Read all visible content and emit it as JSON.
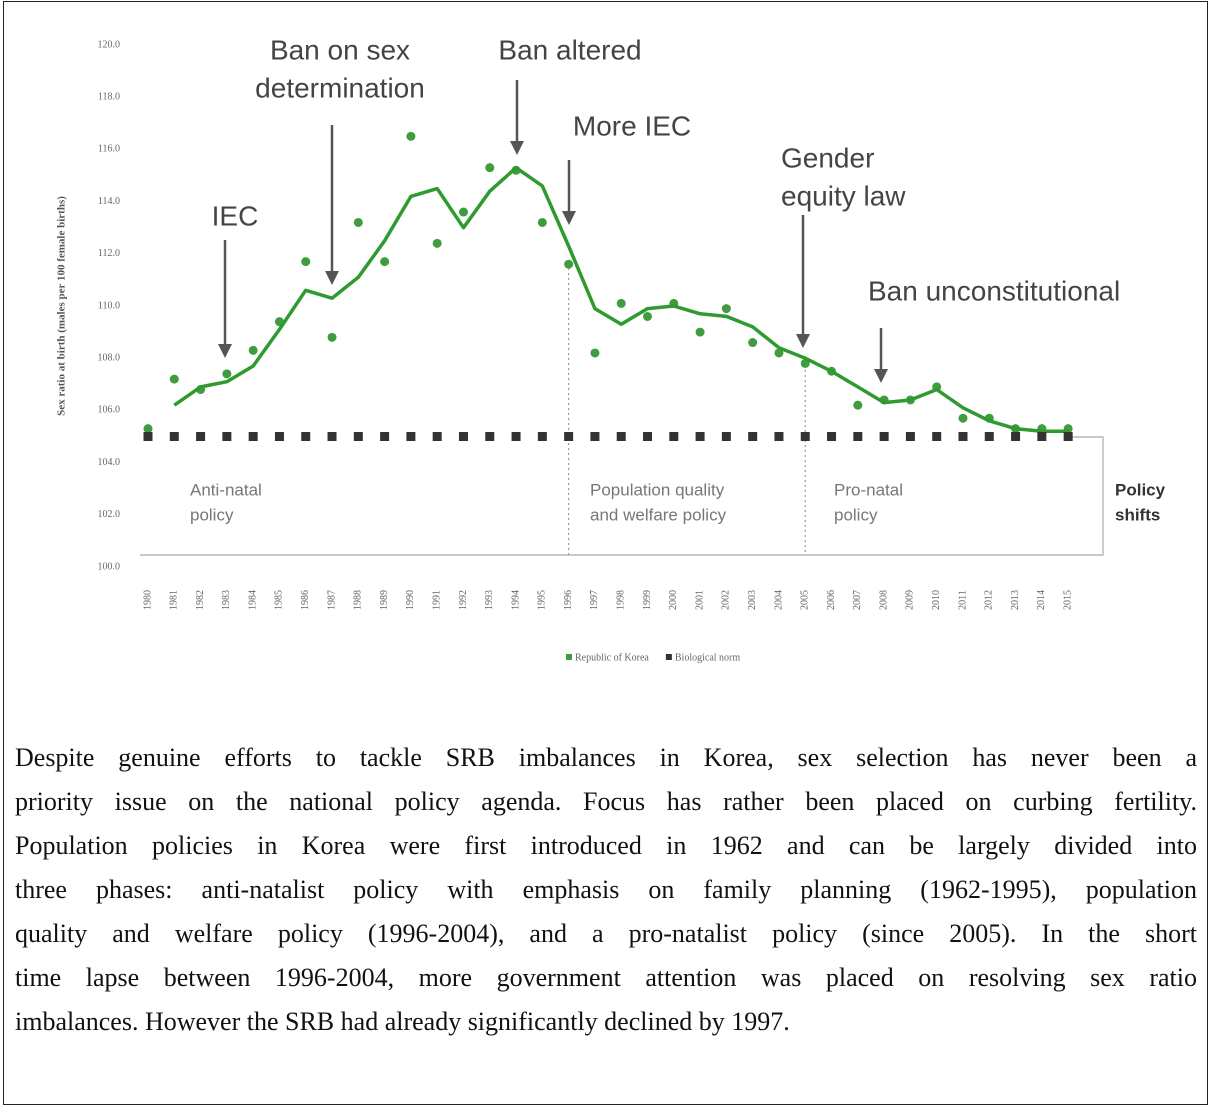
{
  "chart_data": {
    "type": "line",
    "y_label": "Sex ratio at birth (males per 100 female births)",
    "categories": [
      "1980",
      "1981",
      "1982",
      "1983",
      "1984",
      "1985",
      "1986",
      "1987",
      "1988",
      "1989",
      "1990",
      "1991",
      "1992",
      "1993",
      "1994",
      "1995",
      "1996",
      "1997",
      "1998",
      "1999",
      "2000",
      "2001",
      "2002",
      "2003",
      "2004",
      "2005",
      "2006",
      "2007",
      "2008",
      "2009",
      "2010",
      "2011",
      "2012",
      "2013",
      "2014",
      "2015"
    ],
    "series": [
      {
        "name": "Republic of Korea",
        "mode": "markers",
        "color": "#3f9c3f",
        "values": [
          105.3,
          107.2,
          106.8,
          107.4,
          108.3,
          109.4,
          111.7,
          108.8,
          113.2,
          111.7,
          116.5,
          112.4,
          113.6,
          115.3,
          115.2,
          113.2,
          111.6,
          108.2,
          110.1,
          109.6,
          110.1,
          109.0,
          109.9,
          108.6,
          108.2,
          107.8,
          107.5,
          106.2,
          106.4,
          106.4,
          106.9,
          105.7,
          105.7,
          105.3,
          105.3,
          105.3
        ]
      },
      {
        "mode": "line",
        "color": "#2f9a2f",
        "values": [
          null,
          106.2,
          106.9,
          107.1,
          107.7,
          109.1,
          110.6,
          110.3,
          111.1,
          112.5,
          114.2,
          114.5,
          113.0,
          114.4,
          115.3,
          114.6,
          112.3,
          109.9,
          109.3,
          109.9,
          110.0,
          109.7,
          109.6,
          109.2,
          108.4,
          108.0,
          107.5,
          106.9,
          106.3,
          106.4,
          106.8,
          106.1,
          105.6,
          105.3,
          105.2,
          105.2
        ]
      },
      {
        "name": "Biological norm",
        "mode": "dashed",
        "color": "#333333",
        "values": [
          105,
          105,
          105,
          105,
          105,
          105,
          105,
          105,
          105,
          105,
          105,
          105,
          105,
          105,
          105,
          105,
          105,
          105,
          105,
          105,
          105,
          105,
          105,
          105,
          105,
          105,
          105,
          105,
          105,
          105,
          105,
          105,
          105,
          105,
          105,
          105
        ]
      }
    ],
    "ylim": [
      100,
      120
    ],
    "yticks": [
      {
        "value": 100,
        "label": "100.0"
      },
      {
        "value": 102,
        "label": "102.0"
      },
      {
        "value": 104,
        "label": "104.0"
      },
      {
        "value": 106,
        "label": "106.0"
      },
      {
        "value": 108,
        "label": "108.0"
      },
      {
        "value": 110,
        "label": "110.0"
      },
      {
        "value": 112,
        "label": "112.0"
      },
      {
        "value": 114,
        "label": "114.0"
      },
      {
        "value": 116,
        "label": "116.0"
      },
      {
        "value": 118,
        "label": "118.0"
      },
      {
        "value": 120,
        "label": "120.0"
      }
    ],
    "annotations": [
      [
        "IEC"
      ],
      [
        "Ban on sex",
        "determination"
      ],
      [
        "Ban altered"
      ],
      [
        "More IEC"
      ],
      [
        "Gender",
        "equity law"
      ],
      [
        "Ban unconstitutional"
      ]
    ],
    "regions": [
      [
        "Anti-natal",
        "policy"
      ],
      [
        "Population quality",
        "and welfare policy"
      ],
      [
        "Pro-natal",
        "policy"
      ],
      [
        "Policy",
        "shifts"
      ]
    ],
    "legend": "bottom"
  },
  "paragraph": [
    "Despite genuine efforts to tackle SRB imbalances in Korea, sex selection has never been a",
    "priority issue on the national policy agenda. Focus has rather been placed on curbing fertility.",
    "Population policies in Korea were first introduced in 1962 and can be largely divided into",
    "three phases: anti-natalist policy with emphasis on family planning (1962-1995), population",
    "quality and welfare policy (1996-2004), and a pro-natalist policy (since 2005). In the short",
    "time lapse between 1996-2004, more government attention was placed on resolving sex ratio",
    "imbalances. However the SRB had already significantly declined by 1997."
  ]
}
